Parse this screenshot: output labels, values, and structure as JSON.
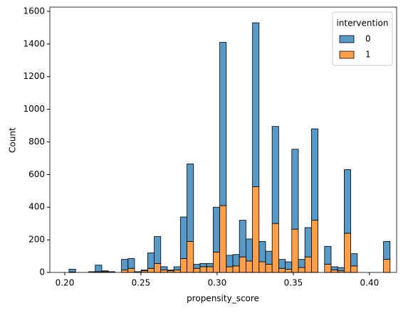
{
  "chart_data": {
    "type": "histogram",
    "stacked": true,
    "xlabel": "propensity_score",
    "ylabel": "Count",
    "bins": [
      0.2028,
      0.2071,
      0.2114,
      0.2157,
      0.22,
      0.2243,
      0.2286,
      0.2329,
      0.2372,
      0.2415,
      0.2458,
      0.2501,
      0.2544,
      0.2587,
      0.263,
      0.2673,
      0.2716,
      0.2759,
      0.2802,
      0.2845,
      0.2888,
      0.2931,
      0.2974,
      0.3017,
      0.306,
      0.3103,
      0.3146,
      0.3189,
      0.3232,
      0.3275,
      0.3318,
      0.3361,
      0.3404,
      0.3447,
      0.349,
      0.3533,
      0.3576,
      0.3619,
      0.3662,
      0.3705,
      0.3748,
      0.3791,
      0.3834,
      0.3877,
      0.392,
      0.3963,
      0.4006,
      0.4049,
      0.4092,
      0.4135
    ],
    "series": [
      {
        "name": "0",
        "color": "#1f77b4",
        "values": [
          17,
          0,
          0,
          5,
          40,
          5,
          5,
          0,
          65,
          60,
          5,
          5,
          95,
          165,
          20,
          5,
          20,
          255,
          475,
          25,
          20,
          20,
          275,
          1000,
          70,
          70,
          225,
          135,
          1005,
          125,
          80,
          595,
          55,
          45,
          490,
          50,
          180,
          560,
          0,
          110,
          20,
          20,
          390,
          75,
          0,
          0,
          0,
          0,
          110
        ]
      },
      {
        "name": "1",
        "color": "#ff7f0e",
        "values": [
          3,
          0,
          0,
          0,
          5,
          5,
          0,
          0,
          15,
          25,
          0,
          10,
          25,
          55,
          15,
          10,
          15,
          85,
          190,
          25,
          35,
          35,
          125,
          410,
          35,
          40,
          95,
          70,
          525,
          65,
          50,
          300,
          25,
          20,
          265,
          30,
          95,
          320,
          0,
          50,
          15,
          10,
          240,
          40,
          0,
          0,
          0,
          0,
          80
        ]
      }
    ],
    "alpha": 0.75,
    "legend": {
      "title": "intervention",
      "loc": "upper right"
    },
    "xlim": [
      0.1902,
      0.4178
    ],
    "xticks": [
      {
        "value": 0.2,
        "label": "0.20"
      },
      0.25,
      {
        "value": 0.3,
        "label": "0.30"
      },
      0.35,
      {
        "value": 0.4,
        "label": "0.40"
      }
    ],
    "ylim": [
      0,
      1626
    ],
    "yticks": [
      0,
      200,
      400,
      600,
      800,
      1000,
      1200,
      1400,
      1600
    ]
  }
}
